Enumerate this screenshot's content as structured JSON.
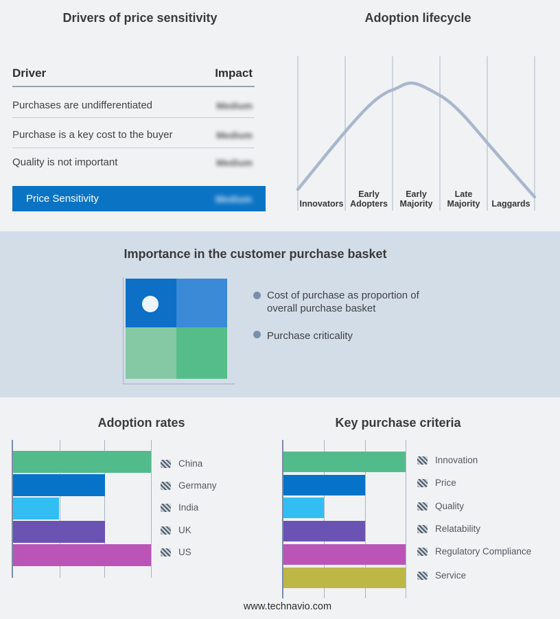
{
  "colors": {
    "page_bg": "#F1F2F4",
    "band_bg": "#D3DDE8",
    "accent_blue": "#0B73C4",
    "curve": "#A9B7CC",
    "gridline": "#A9B4C6",
    "quadrant": [
      "#0D6FC5",
      "#3A8AD8",
      "#85C8A4",
      "#55BD89"
    ]
  },
  "lifecycle": {
    "stage_labels": [
      "Innovators",
      "Early\nAdopters",
      "Early\nMajority",
      "Late\nMajority",
      "Laggards"
    ]
  },
  "basket": {
    "title": "Importance in the customer purchase basket",
    "bullets": [
      "Cost of purchase as proportion of overall purchase basket",
      "Purchase criticality"
    ]
  },
  "footer": {
    "text": "www.technavio.com"
  },
  "chart_data": [
    {
      "id": "drivers_of_price_sensitivity",
      "type": "table",
      "title": "Drivers of price sensitivity",
      "columns": [
        "Driver",
        "Impact"
      ],
      "rows": [
        [
          "Purchases are undifferentiated",
          "Medium"
        ],
        [
          "Purchase is a key cost to the buyer",
          "Medium"
        ],
        [
          "Quality is not important",
          "Medium"
        ]
      ],
      "highlight_row": [
        "Price Sensitivity",
        "Medium"
      ],
      "impact_values_blurred": true
    },
    {
      "id": "adoption_lifecycle",
      "type": "line",
      "title": "Adoption lifecycle",
      "categories": [
        "Innovators",
        "Early Adopters",
        "Early Majority",
        "Late Majority",
        "Laggards"
      ],
      "description": "Bell-shaped adoption curve rising from Innovators, peaking in Early Majority, declining through Laggards",
      "curve_points_xy_norm": [
        [
          0.0,
          0.05
        ],
        [
          0.2,
          0.42
        ],
        [
          0.4,
          0.69
        ],
        [
          0.48,
          0.73
        ],
        [
          0.6,
          0.65
        ],
        [
          0.8,
          0.35
        ],
        [
          1.0,
          0.0
        ]
      ],
      "grid": true,
      "legend_position": "none"
    },
    {
      "id": "adoption_rates",
      "type": "bar",
      "orientation": "horizontal",
      "title": "Adoption rates",
      "categories": [
        "China",
        "Germany",
        "India",
        "UK",
        "US"
      ],
      "values": [
        3,
        2,
        1,
        2,
        3
      ],
      "xlim": [
        0,
        3
      ],
      "value_note": "relative scale in gridline units (3 = full bar)",
      "bar_colors": [
        "#52BB8C",
        "#0773C8",
        "#33BEF3",
        "#6A53B3",
        "#BA55B7"
      ],
      "grid": true,
      "legend_position": "right"
    },
    {
      "id": "key_purchase_criteria",
      "type": "bar",
      "orientation": "horizontal",
      "title": "Key purchase criteria",
      "categories": [
        "Innovation",
        "Price",
        "Quality",
        "Relatability",
        "Regulatory Compliance",
        "Service"
      ],
      "values": [
        3,
        2,
        1,
        2,
        3,
        3
      ],
      "xlim": [
        0,
        3
      ],
      "value_note": "relative scale in gridline units (3 = full bar)",
      "bar_colors": [
        "#52BB8C",
        "#0773C8",
        "#33BEF3",
        "#6A53B3",
        "#BA55B7",
        "#BDB746"
      ],
      "grid": true,
      "legend_position": "right"
    }
  ]
}
